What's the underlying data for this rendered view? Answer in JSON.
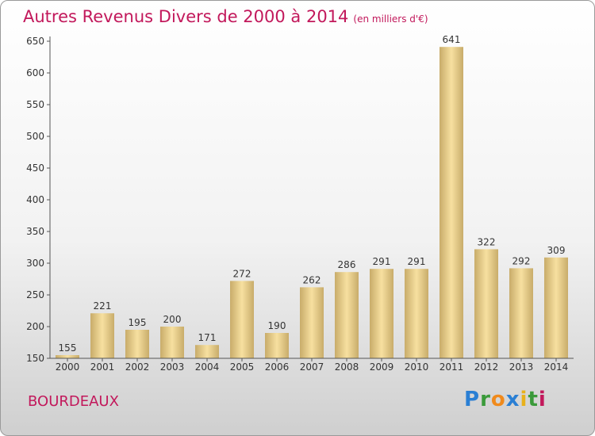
{
  "title": "Autres Revenus Divers de 2000 à 2014",
  "unit": "(en milliers d'€)",
  "city": "BOURDEAUX",
  "logo": {
    "letters": [
      "P",
      "r",
      "o",
      "x",
      "i",
      "t",
      "i"
    ],
    "colors": [
      "#2a7fd4",
      "#3a9a3a",
      "#f08a1c",
      "#2a7fd4",
      "#e8b11c",
      "#3a9a3a",
      "#c2185b"
    ]
  },
  "colors": {
    "bar_light": "#f7e0a0",
    "bar_dark": "#c8ac6a",
    "label": "#333333"
  },
  "chart_data": {
    "type": "bar",
    "categories": [
      "2000",
      "2001",
      "2002",
      "2003",
      "2004",
      "2005",
      "2006",
      "2007",
      "2008",
      "2009",
      "2010",
      "2011",
      "2012",
      "2013",
      "2014"
    ],
    "values": [
      155,
      221,
      195,
      200,
      171,
      272,
      190,
      262,
      286,
      291,
      291,
      641,
      322,
      292,
      309
    ],
    "ylim": [
      150,
      650
    ],
    "yticks": [
      150,
      200,
      250,
      300,
      350,
      400,
      450,
      500,
      550,
      600,
      650
    ],
    "grid": false,
    "legend": "none"
  }
}
